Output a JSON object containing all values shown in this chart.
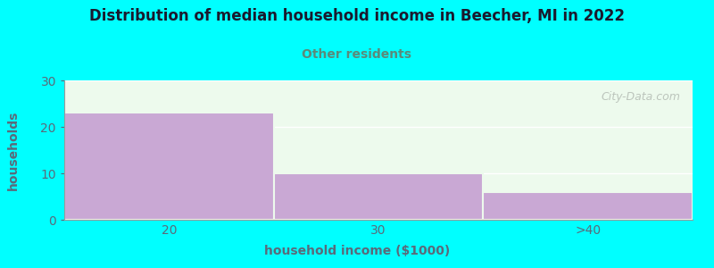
{
  "title": "Distribution of median household income in Beecher, MI in 2022",
  "subtitle": "Other residents",
  "xlabel": "household income ($1000)",
  "ylabel": "households",
  "background_color": "#00FFFF",
  "plot_bg_color": "#EDFAED",
  "bar_color": "#C9A8D4",
  "categories": [
    "20",
    "30",
    ">40"
  ],
  "values": [
    23,
    10,
    6
  ],
  "ylim": [
    0,
    30
  ],
  "yticks": [
    0,
    10,
    20,
    30
  ],
  "title_color": "#1a1a2e",
  "subtitle_color": "#5a8a7a",
  "axis_label_color": "#5a6a7a",
  "tick_color": "#5a6a7a",
  "watermark_text": "City-Data.com",
  "watermark_color": "#b0b8b0"
}
